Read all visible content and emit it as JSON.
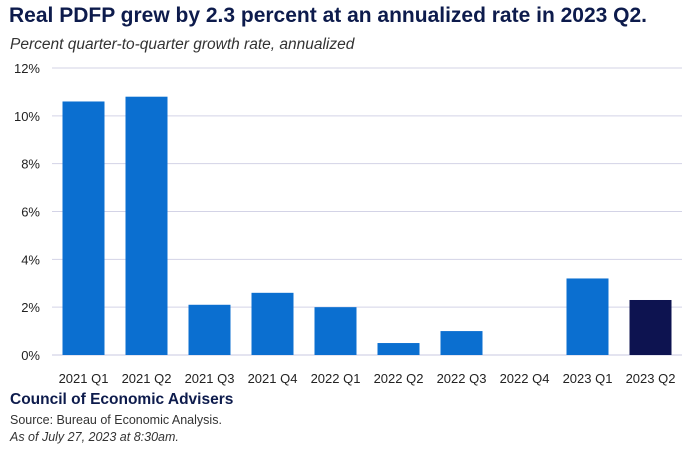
{
  "header": {
    "title": "Real PDFP grew by 2.3 percent at an annualized rate in 2023 Q2.",
    "subtitle": "Percent quarter-to-quarter growth rate, annualized"
  },
  "footer": {
    "org": "Council of Economic Advisers",
    "source": "Source: Bureau of Economic Analysis.",
    "as_of": "As of July 27, 2023 at 8:30am."
  },
  "colors": {
    "bar": "#0b6fd0",
    "highlight": "#0d1350",
    "grid": "#d3d3e6",
    "title": "#0d1b4c"
  },
  "chart_data": {
    "type": "bar",
    "title": "Real PDFP grew by 2.3 percent at an annualized rate in 2023 Q2.",
    "subtitle": "Percent quarter-to-quarter growth rate, annualized",
    "categories": [
      "2021 Q1",
      "2021 Q2",
      "2021 Q3",
      "2021 Q4",
      "2022 Q1",
      "2022 Q2",
      "2022 Q3",
      "2022 Q4",
      "2023 Q1",
      "2023 Q2"
    ],
    "values": [
      10.6,
      10.8,
      2.1,
      2.6,
      2.0,
      0.5,
      1.0,
      0.0,
      3.2,
      2.3
    ],
    "highlight_index": 9,
    "ylim": [
      0,
      12
    ],
    "yticks": [
      0,
      2,
      4,
      6,
      8,
      10,
      12
    ],
    "ytick_labels": [
      "0%",
      "2%",
      "4%",
      "6%",
      "8%",
      "10%",
      "12%"
    ],
    "grid": true,
    "legend": "none"
  }
}
